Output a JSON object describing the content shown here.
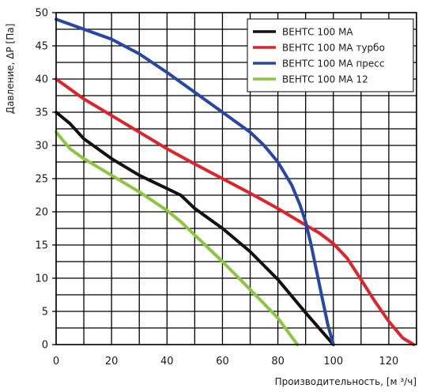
{
  "chart_data": {
    "type": "line",
    "title": "",
    "xlabel": "Производительность, [м ³/ч]",
    "ylabel": "Давление, ΔP [Па]",
    "xlim": [
      0,
      130
    ],
    "ylim": [
      0,
      50
    ],
    "x_ticks": [
      "0",
      "20",
      "40",
      "60",
      "80",
      "100",
      "120"
    ],
    "y_ticks": [
      "0",
      "5",
      "10",
      "15",
      "20",
      "25",
      "30",
      "35",
      "40",
      "45",
      "50"
    ],
    "grid": true,
    "legend_position": "top-right",
    "series": [
      {
        "name": "ВЕНТС 100 МА",
        "color": "#111111",
        "x": [
          0,
          5,
          10,
          20,
          30,
          40,
          45,
          50,
          60,
          70,
          80,
          90,
          100
        ],
        "y": [
          35,
          33.3,
          31,
          28,
          25.5,
          23.5,
          22.5,
          20.5,
          17.5,
          14,
          9.8,
          4.8,
          0
        ]
      },
      {
        "name": "ВЕНТС 100 МА турбо",
        "color": "#e0222a",
        "x": [
          0,
          10,
          20,
          30,
          40,
          50,
          60,
          70,
          80,
          90,
          95,
          100,
          105,
          110,
          115,
          120,
          125,
          129
        ],
        "y": [
          40,
          37,
          34.5,
          32,
          29.5,
          27.2,
          25,
          22.8,
          20.5,
          18,
          16.8,
          15.2,
          13,
          9.8,
          6.5,
          3.5,
          1,
          0
        ]
      },
      {
        "name": "ВЕНТС 100 МА пресс",
        "color": "#2647a3",
        "x": [
          0,
          10,
          20,
          30,
          40,
          50,
          60,
          70,
          75,
          80,
          85,
          88,
          90,
          92,
          94,
          96,
          98,
          100
        ],
        "y": [
          49,
          47.5,
          46,
          43.8,
          41,
          38,
          35,
          32,
          30,
          27.5,
          24,
          21,
          18.5,
          15,
          11,
          7,
          3,
          0
        ]
      },
      {
        "name": "ВЕНТС 100 МА 12",
        "color": "#8cc63f",
        "x": [
          0,
          5,
          10,
          20,
          30,
          40,
          45,
          50,
          60,
          70,
          80,
          87
        ],
        "y": [
          32,
          29.5,
          28,
          25.5,
          23,
          20.2,
          18.5,
          16.5,
          12.5,
          8.3,
          4,
          0
        ]
      }
    ]
  }
}
